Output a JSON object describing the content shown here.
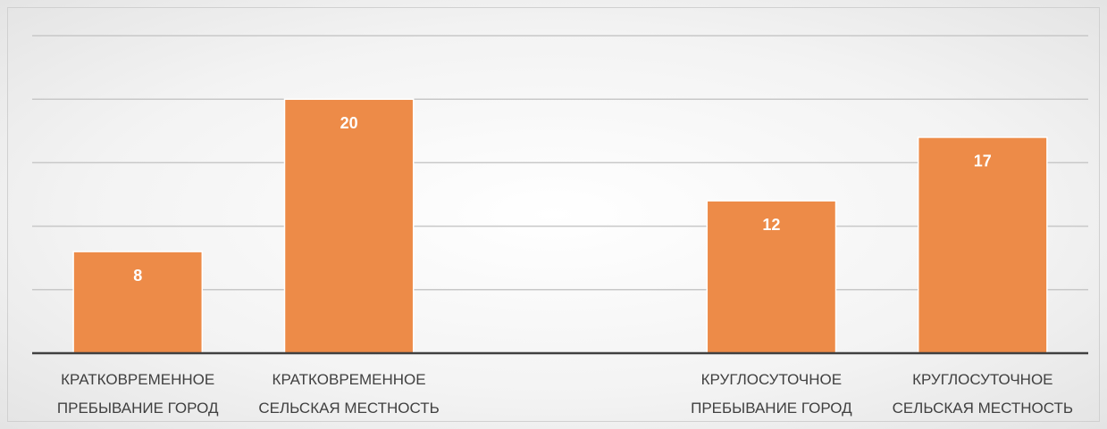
{
  "chart_data": {
    "type": "bar",
    "categories": [
      "КРАТКОВРЕМЕННОЕ\nПРЕБЫВАНИЕ ГОРОД",
      "КРАТКОВРЕМЕННОЕ\nСЕЛЬСКАЯ МЕСТНОСТЬ",
      null,
      "КРУГЛОСУТОЧНОЕ\nПРЕБЫВАНИЕ ГОРОД",
      "КРУГЛОСУТОЧНОЕ\nСЕЛЬСКАЯ МЕСТНОСТЬ"
    ],
    "values": [
      8,
      20,
      null,
      12,
      17
    ],
    "color": "#ed8b48",
    "ylim": [
      0,
      25
    ],
    "yticks": [
      0,
      5,
      10,
      15,
      20,
      25
    ],
    "grid": true
  }
}
